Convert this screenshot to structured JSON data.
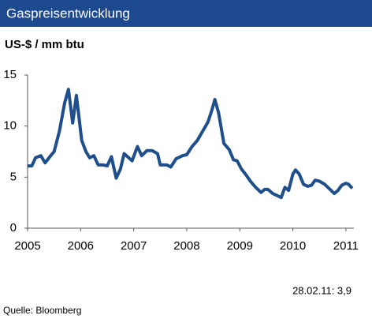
{
  "chart_data": {
    "type": "line",
    "title": "Gaspreisentwicklung",
    "subtitle": "US-$ / mm btu",
    "annotation": "28.02.11: 3,9",
    "source": "Quelle: Bloomberg",
    "x": [
      2005.0,
      2005.08,
      2005.15,
      2005.25,
      2005.33,
      2005.42,
      2005.5,
      2005.6,
      2005.7,
      2005.77,
      2005.85,
      2005.92,
      2006.02,
      2006.1,
      2006.17,
      2006.25,
      2006.33,
      2006.42,
      2006.5,
      2006.58,
      2006.67,
      2006.75,
      2006.82,
      2006.97,
      2007.07,
      2007.15,
      2007.25,
      2007.35,
      2007.45,
      2007.5,
      2007.62,
      2007.7,
      2007.8,
      2007.92,
      2008.0,
      2008.1,
      2008.2,
      2008.3,
      2008.4,
      2008.47,
      2008.53,
      2008.6,
      2008.7,
      2008.8,
      2008.88,
      2008.95,
      2009.03,
      2009.12,
      2009.2,
      2009.3,
      2009.4,
      2009.47,
      2009.53,
      2009.62,
      2009.7,
      2009.78,
      2009.85,
      2009.92,
      2010.0,
      2010.05,
      2010.12,
      2010.2,
      2010.28,
      2010.35,
      2010.42,
      2010.5,
      2010.6,
      2010.7,
      2010.78,
      2010.85,
      2010.92,
      2011.0,
      2011.05,
      2011.12
    ],
    "series": [
      {
        "name": "Gaspreis",
        "color": "#1f4e8c",
        "values": [
          6.1,
          6.1,
          6.9,
          7.1,
          6.4,
          7.0,
          7.5,
          9.5,
          12.3,
          13.6,
          10.3,
          13.0,
          8.6,
          7.5,
          6.9,
          7.1,
          6.2,
          6.2,
          6.1,
          7.0,
          4.9,
          5.8,
          7.3,
          6.6,
          8.0,
          7.1,
          7.6,
          7.6,
          7.3,
          6.2,
          6.2,
          6.0,
          6.8,
          7.1,
          7.2,
          8.0,
          8.6,
          9.5,
          10.4,
          11.5,
          12.6,
          11.3,
          8.3,
          7.7,
          6.7,
          6.6,
          5.8,
          5.2,
          4.6,
          4.0,
          3.5,
          3.8,
          3.8,
          3.4,
          3.2,
          3.0,
          4.0,
          3.7,
          5.3,
          5.7,
          5.3,
          4.3,
          4.1,
          4.2,
          4.7,
          4.6,
          4.3,
          3.8,
          3.4,
          3.7,
          4.2,
          4.4,
          4.3,
          3.9
        ]
      }
    ],
    "xlim": [
      2005,
      2011.15
    ],
    "xticks": [
      2005,
      2006,
      2007,
      2008,
      2009,
      2010,
      2011
    ],
    "ylim": [
      0,
      15
    ],
    "yticks": [
      0,
      5,
      10,
      15
    ],
    "grid": false
  }
}
